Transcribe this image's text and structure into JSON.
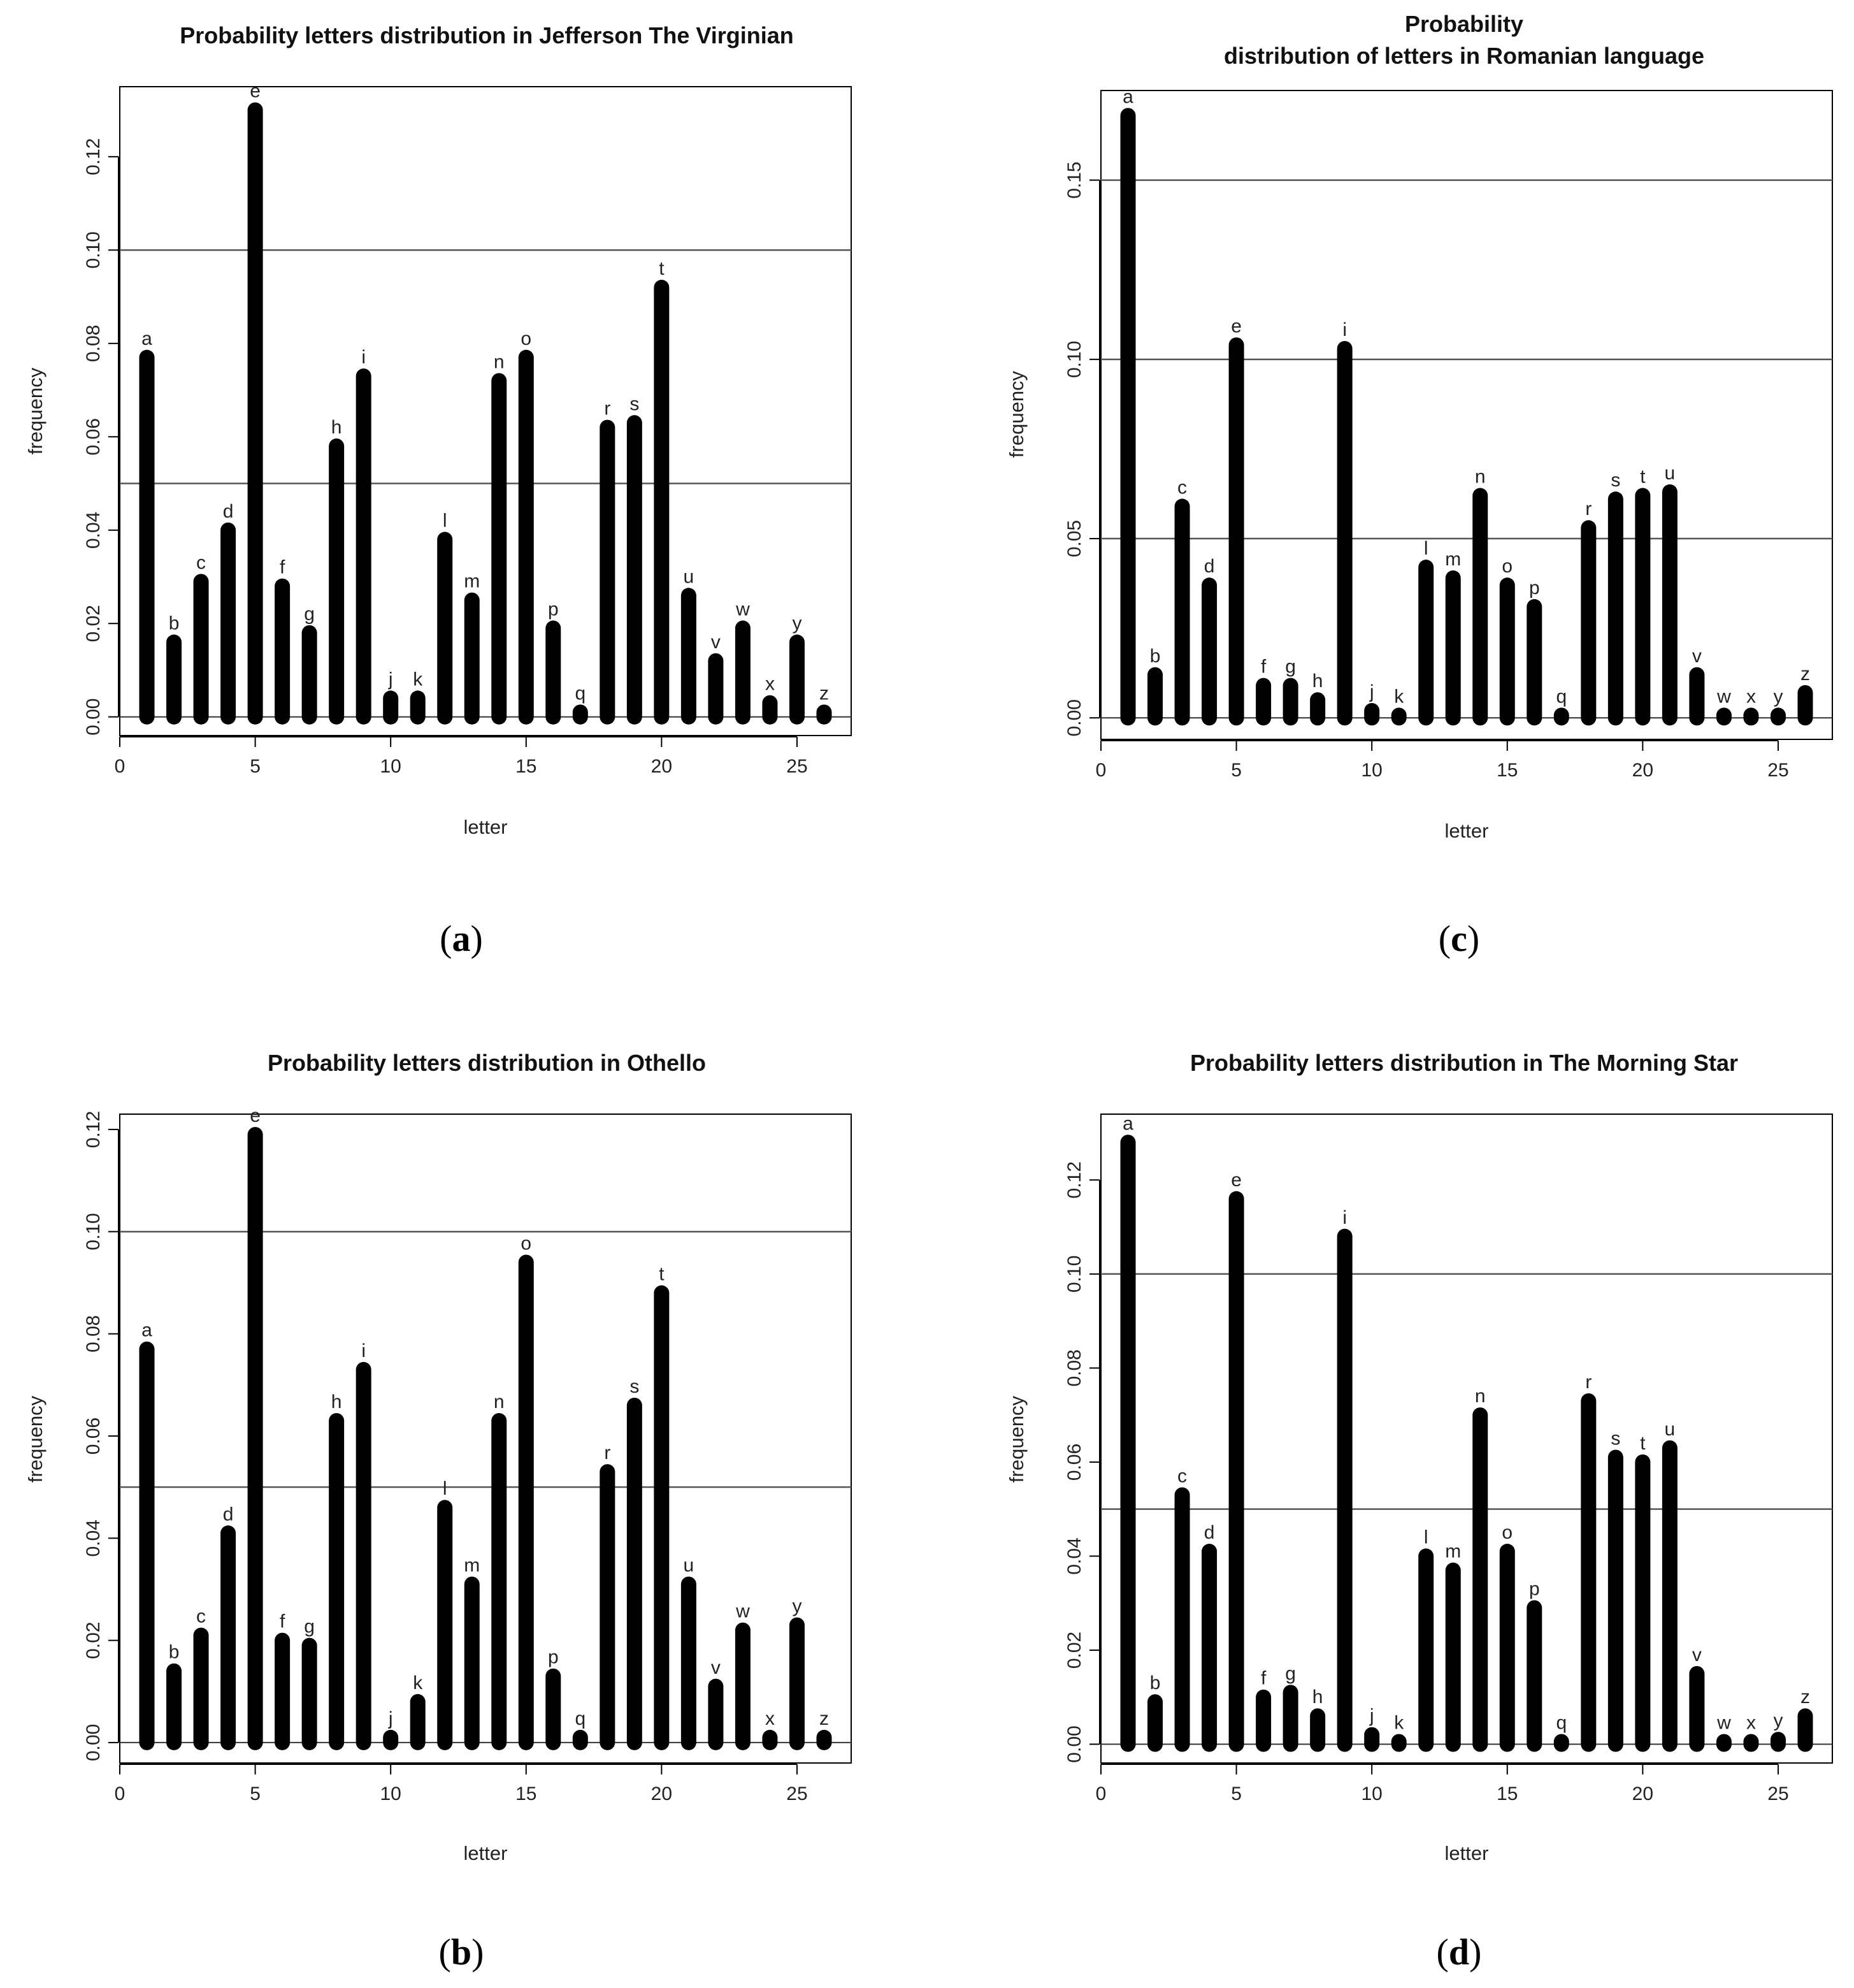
{
  "figure": {
    "panels": [
      {
        "id": "a",
        "caption_letter": "a",
        "title_lines": [
          "Probability letters distribution in Jefferson The Virginian"
        ],
        "chart_data": {
          "type": "bar",
          "title": "Probability letters distribution in Jefferson The Virginian",
          "xlabel": "letter",
          "ylabel": "frequency",
          "xlim": [
            0,
            27
          ],
          "ylim": [
            -0.004,
            0.135
          ],
          "xticks": [
            0,
            5,
            10,
            15,
            20,
            25
          ],
          "yticks": [
            0.0,
            0.02,
            0.04,
            0.06,
            0.08,
            0.1,
            0.12
          ],
          "yticklabels": [
            "0.00",
            "0.02",
            "0.04",
            "0.06",
            "0.08",
            "0.10",
            "0.12"
          ],
          "hlines": [
            0.0,
            0.05,
            0.1
          ],
          "x": [
            1,
            2,
            3,
            4,
            5,
            6,
            7,
            8,
            9,
            10,
            11,
            12,
            13,
            14,
            15,
            16,
            17,
            18,
            19,
            20,
            21,
            22,
            23,
            24,
            25,
            26
          ],
          "labels": [
            "a",
            "b",
            "c",
            "d",
            "e",
            "f",
            "g",
            "h",
            "i",
            "j",
            "k",
            "l",
            "m",
            "n",
            "o",
            "p",
            "q",
            "r",
            "s",
            "t",
            "u",
            "v",
            "w",
            "x",
            "y",
            "z"
          ],
          "values": [
            0.077,
            0.016,
            0.029,
            0.04,
            0.13,
            0.028,
            0.018,
            0.058,
            0.073,
            0.004,
            0.004,
            0.038,
            0.025,
            0.072,
            0.077,
            0.019,
            0.001,
            0.062,
            0.063,
            0.092,
            0.026,
            0.012,
            0.019,
            0.003,
            0.016,
            0.001
          ]
        }
      },
      {
        "id": "c",
        "caption_letter": "c",
        "title_lines": [
          "Probability",
          "distribution of letters in Romanian language"
        ],
        "chart_data": {
          "type": "bar",
          "title": "Probability distribution of letters in Romanian language",
          "xlabel": "letter",
          "ylabel": "frequency",
          "xlim": [
            0,
            27
          ],
          "ylim": [
            -0.006,
            0.175
          ],
          "xticks": [
            0,
            5,
            10,
            15,
            20,
            25
          ],
          "yticks": [
            0.0,
            0.05,
            0.1,
            0.15
          ],
          "yticklabels": [
            "0.00",
            "0.05",
            "0.10",
            "0.15"
          ],
          "hlines": [
            0.0,
            0.05,
            0.1,
            0.15
          ],
          "x": [
            1,
            2,
            3,
            4,
            5,
            6,
            7,
            8,
            9,
            10,
            11,
            12,
            13,
            14,
            15,
            16,
            17,
            18,
            19,
            20,
            21,
            22,
            23,
            24,
            25,
            26
          ],
          "labels": [
            "a",
            "b",
            "c",
            "d",
            "e",
            "f",
            "g",
            "h",
            "i",
            "j",
            "k",
            "l",
            "m",
            "n",
            "o",
            "p",
            "q",
            "r",
            "s",
            "t",
            "u",
            "v",
            "w",
            "x",
            "y",
            "z"
          ],
          "values": [
            0.168,
            0.012,
            0.059,
            0.037,
            0.104,
            0.009,
            0.009,
            0.005,
            0.103,
            0.002,
            0.0005,
            0.042,
            0.039,
            0.062,
            0.037,
            0.031,
            0.0005,
            0.053,
            0.061,
            0.062,
            0.063,
            0.012,
            0.0005,
            0.0005,
            0.0005,
            0.007
          ]
        }
      },
      {
        "id": "b",
        "caption_letter": "b",
        "title_lines": [
          "Probability letters distribution in Othello"
        ],
        "chart_data": {
          "type": "bar",
          "title": "Probability letters distribution in Othello",
          "xlabel": "letter",
          "ylabel": "frequency",
          "xlim": [
            0,
            27
          ],
          "ylim": [
            -0.004,
            0.123
          ],
          "xticks": [
            0,
            5,
            10,
            15,
            20,
            25
          ],
          "yticks": [
            0.0,
            0.02,
            0.04,
            0.06,
            0.08,
            0.1,
            0.12
          ],
          "yticklabels": [
            "0.00",
            "0.02",
            "0.04",
            "0.06",
            "0.08",
            "0.10",
            "0.12"
          ],
          "hlines": [
            0.0,
            0.05,
            0.1
          ],
          "x": [
            1,
            2,
            3,
            4,
            5,
            6,
            7,
            8,
            9,
            10,
            11,
            12,
            13,
            14,
            15,
            16,
            17,
            18,
            19,
            20,
            21,
            22,
            23,
            24,
            25,
            26
          ],
          "labels": [
            "a",
            "b",
            "c",
            "d",
            "e",
            "f",
            "g",
            "h",
            "i",
            "j",
            "k",
            "l",
            "m",
            "n",
            "o",
            "p",
            "q",
            "r",
            "s",
            "t",
            "u",
            "v",
            "w",
            "x",
            "y",
            "z"
          ],
          "values": [
            0.077,
            0.014,
            0.021,
            0.041,
            0.119,
            0.02,
            0.019,
            0.063,
            0.073,
            0.001,
            0.008,
            0.046,
            0.031,
            0.063,
            0.094,
            0.013,
            0.001,
            0.053,
            0.066,
            0.088,
            0.031,
            0.011,
            0.022,
            0.001,
            0.023,
            0.001
          ]
        }
      },
      {
        "id": "d",
        "caption_letter": "d",
        "title_lines": [
          "Probability letters distribution in The Morning Star"
        ],
        "chart_data": {
          "type": "bar",
          "title": "Probability letters distribution in The Morning Star",
          "xlabel": "letter",
          "ylabel": "frequency",
          "xlim": [
            0,
            27
          ],
          "ylim": [
            -0.004,
            0.134
          ],
          "xticks": [
            0,
            5,
            10,
            15,
            20,
            25
          ],
          "yticks": [
            0.0,
            0.02,
            0.04,
            0.06,
            0.08,
            0.1,
            0.12
          ],
          "yticklabels": [
            "0.00",
            "0.02",
            "0.04",
            "0.06",
            "0.08",
            "0.10",
            "0.12"
          ],
          "hlines": [
            0.0,
            0.05,
            0.1
          ],
          "x": [
            1,
            2,
            3,
            4,
            5,
            6,
            7,
            8,
            9,
            10,
            11,
            12,
            13,
            14,
            15,
            16,
            17,
            18,
            19,
            20,
            21,
            22,
            23,
            24,
            25,
            26
          ],
          "labels": [
            "a",
            "b",
            "c",
            "d",
            "e",
            "f",
            "g",
            "h",
            "i",
            "j",
            "k",
            "l",
            "m",
            "n",
            "o",
            "p",
            "q",
            "r",
            "s",
            "t",
            "u",
            "v",
            "w",
            "x",
            "y",
            "z"
          ],
          "values": [
            0.128,
            0.009,
            0.053,
            0.041,
            0.116,
            0.01,
            0.011,
            0.006,
            0.108,
            0.002,
            0.0005,
            0.04,
            0.037,
            0.07,
            0.041,
            0.029,
            0.0005,
            0.073,
            0.061,
            0.06,
            0.063,
            0.015,
            0.0005,
            0.0005,
            0.001,
            0.006
          ]
        }
      }
    ]
  }
}
